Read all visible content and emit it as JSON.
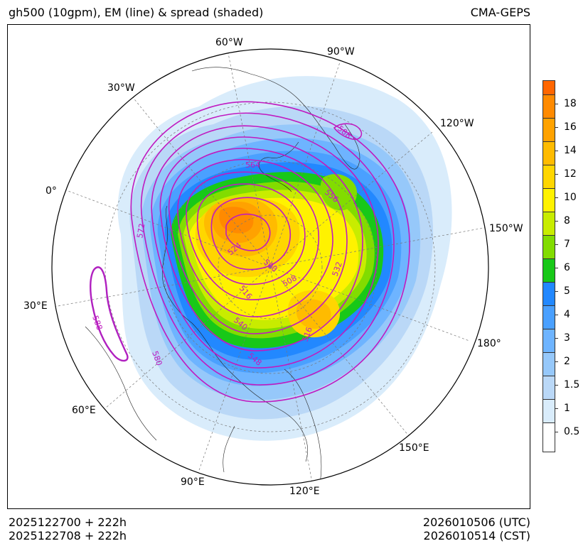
{
  "header": {
    "title": "gh500 (10gpm), EM (line) & spread (shaded)",
    "model": "CMA-GEPS"
  },
  "map": {
    "projection": "north-polar-stereographic",
    "longitude_labels": [
      "60°W",
      "90°W",
      "120°W",
      "150°W",
      "180°",
      "150°E",
      "120°E",
      "90°E",
      "60°E",
      "30°E",
      "0°",
      "30°W"
    ],
    "contour_labels": [
      "564",
      "556",
      "572",
      "524",
      "500",
      "532",
      "508",
      "516",
      "540",
      "548",
      "516",
      "580",
      "588",
      "588"
    ],
    "contour_color": "#c01ac0"
  },
  "colorbar": {
    "labels": [
      "18",
      "16",
      "14",
      "12",
      "10",
      "8",
      "7",
      "6",
      "5",
      "4",
      "3",
      "2",
      "1.5",
      "1",
      "0.5"
    ],
    "colors": [
      "#ff6600",
      "#ff8a00",
      "#ffa200",
      "#ffbb00",
      "#ffd600",
      "#fff200",
      "#c8ec00",
      "#82dc00",
      "#18c818",
      "#2288ff",
      "#4aa0ff",
      "#6eb4ff",
      "#96c8fa",
      "#bad8f7",
      "#d9ecfb",
      "#ffffff"
    ]
  },
  "footer": {
    "init_utc": "2025122700 + 222h",
    "init_cst": "2025122708 + 222h",
    "valid_utc": "2026010506 (UTC)",
    "valid_cst": "2026010514 (CST)"
  }
}
